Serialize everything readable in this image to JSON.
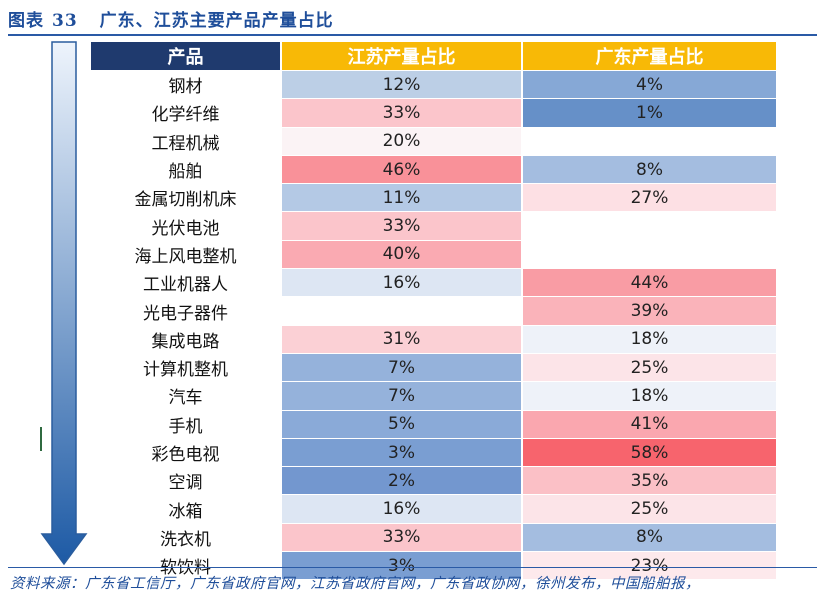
{
  "figure": {
    "label": "图表",
    "number": "33",
    "title": "广东、江苏主要产品产量占比"
  },
  "table": {
    "headers": [
      "产品",
      "江苏产量占比",
      "广东产量占比"
    ],
    "rows": [
      {
        "product": "钢材",
        "jiangsu": "12%",
        "guangdong": "4%",
        "jiangsu_color": "#bccfe6",
        "guangdong_color": "#86a8d6"
      },
      {
        "product": "化学纤维",
        "jiangsu": "33%",
        "guangdong": "1%",
        "jiangsu_color": "#fbc5cb",
        "guangdong_color": "#6690c8"
      },
      {
        "product": "工程机械",
        "jiangsu": "20%",
        "guangdong": "",
        "jiangsu_color": "#fbf3f5",
        "guangdong_color": "#ffffff"
      },
      {
        "product": "船舶",
        "jiangsu": "46%",
        "guangdong": "8%",
        "jiangsu_color": "#f99199",
        "guangdong_color": "#a4bde0"
      },
      {
        "product": "金属切削机床",
        "jiangsu": "11%",
        "guangdong": "27%",
        "jiangsu_color": "#b4c9e5",
        "guangdong_color": "#fde0e4"
      },
      {
        "product": "光伏电池",
        "jiangsu": "33%",
        "guangdong": "",
        "jiangsu_color": "#fbc5cb",
        "guangdong_color": "#ffffff"
      },
      {
        "product": "海上风电整机",
        "jiangsu": "40%",
        "guangdong": "",
        "jiangsu_color": "#faaab2",
        "guangdong_color": "#ffffff"
      },
      {
        "product": "工业机器人",
        "jiangsu": "16%",
        "guangdong": "44%",
        "jiangsu_color": "#dde6f3",
        "guangdong_color": "#f99ca4"
      },
      {
        "product": "光电子器件",
        "jiangsu": "",
        "guangdong": "39%",
        "jiangsu_color": "#ffffff",
        "guangdong_color": "#fab3ba"
      },
      {
        "product": "集成电路",
        "jiangsu": "31%",
        "guangdong": "18%",
        "jiangsu_color": "#fbd0d5",
        "guangdong_color": "#eef2f9"
      },
      {
        "product": "计算机整机",
        "jiangsu": "7%",
        "guangdong": "25%",
        "jiangsu_color": "#95b2db",
        "guangdong_color": "#fce4e8"
      },
      {
        "product": "汽车",
        "jiangsu": "7%",
        "guangdong": "18%",
        "jiangsu_color": "#95b2db",
        "guangdong_color": "#eef2f9"
      },
      {
        "product": "手机",
        "jiangsu": "5%",
        "guangdong": "41%",
        "jiangsu_color": "#8aaad8",
        "guangdong_color": "#faa7af"
      },
      {
        "product": "彩色电视",
        "jiangsu": "3%",
        "guangdong": "58%",
        "jiangsu_color": "#7a9ed2",
        "guangdong_color": "#f7646d"
      },
      {
        "product": "空调",
        "jiangsu": "2%",
        "guangdong": "35%",
        "jiangsu_color": "#7397cf",
        "guangdong_color": "#fbc0c6"
      },
      {
        "product": "冰箱",
        "jiangsu": "16%",
        "guangdong": "25%",
        "jiangsu_color": "#dde6f3",
        "guangdong_color": "#fce4e8"
      },
      {
        "product": "洗衣机",
        "jiangsu": "33%",
        "guangdong": "8%",
        "jiangsu_color": "#fbc5cb",
        "guangdong_color": "#a4bde0"
      },
      {
        "product": "软饮料",
        "jiangsu": "3%",
        "guangdong": "23%",
        "jiangsu_color": "#7a9ed2",
        "guangdong_color": "#fde9ec"
      }
    ]
  },
  "source": "资料来源：广东省工信厅，广东省政府官网，江苏省政府官网，广东省政协网，徐州发布，中国船舶报，",
  "colors": {
    "title_blue": "#1f4e9a",
    "header_dark": "#1f3a6e",
    "header_gold": "#f8b906",
    "arrow_top": "#e9f1fb",
    "arrow_bottom": "#1f5da8"
  },
  "icons": [
    "down-arrow-icon"
  ]
}
